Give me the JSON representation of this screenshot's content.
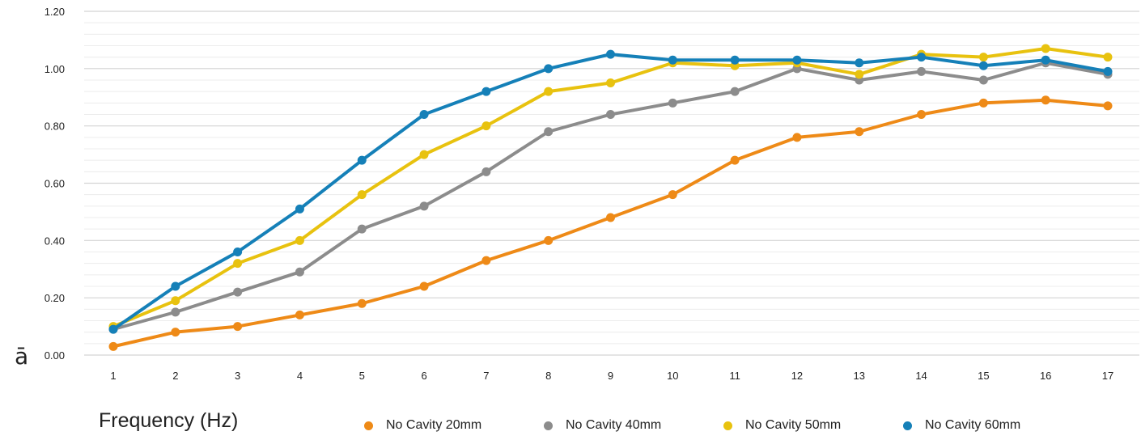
{
  "chart_data": {
    "type": "line",
    "title": "",
    "xlabel": "Frequency (Hz)",
    "ylabel": "ā",
    "categories": [
      "1",
      "2",
      "3",
      "4",
      "5",
      "6",
      "7",
      "8",
      "9",
      "10",
      "11",
      "12",
      "13",
      "14",
      "15",
      "16",
      "17"
    ],
    "ylim": [
      0,
      1.2
    ],
    "y_ticks": [
      "0.00",
      "0.20",
      "0.40",
      "0.60",
      "0.80",
      "1.00",
      "1.20"
    ],
    "grid": true,
    "legend_position": "bottom",
    "series": [
      {
        "name": "No Cavity 20mm",
        "color": "#ee8a17",
        "values": [
          0.03,
          0.08,
          0.1,
          0.14,
          0.18,
          0.24,
          0.33,
          0.4,
          0.48,
          0.56,
          0.68,
          0.76,
          0.78,
          0.84,
          0.88,
          0.89,
          0.87
        ]
      },
      {
        "name": "No Cavity 40mm",
        "color": "#8c8c8c",
        "values": [
          0.09,
          0.15,
          0.22,
          0.29,
          0.44,
          0.52,
          0.64,
          0.78,
          0.84,
          0.88,
          0.92,
          1.0,
          0.96,
          0.99,
          0.96,
          1.02,
          0.98
        ]
      },
      {
        "name": "No Cavity 50mm",
        "color": "#e8c20f",
        "values": [
          0.1,
          0.19,
          0.32,
          0.4,
          0.56,
          0.7,
          0.8,
          0.92,
          0.95,
          1.02,
          1.01,
          1.02,
          0.98,
          1.05,
          1.04,
          1.07,
          1.04
        ]
      },
      {
        "name": "No Cavity 60mm",
        "color": "#1580b8",
        "values": [
          0.09,
          0.24,
          0.36,
          0.51,
          0.68,
          0.84,
          0.92,
          1.0,
          1.05,
          1.03,
          1.03,
          1.03,
          1.02,
          1.04,
          1.01,
          1.03,
          0.99
        ]
      }
    ]
  }
}
